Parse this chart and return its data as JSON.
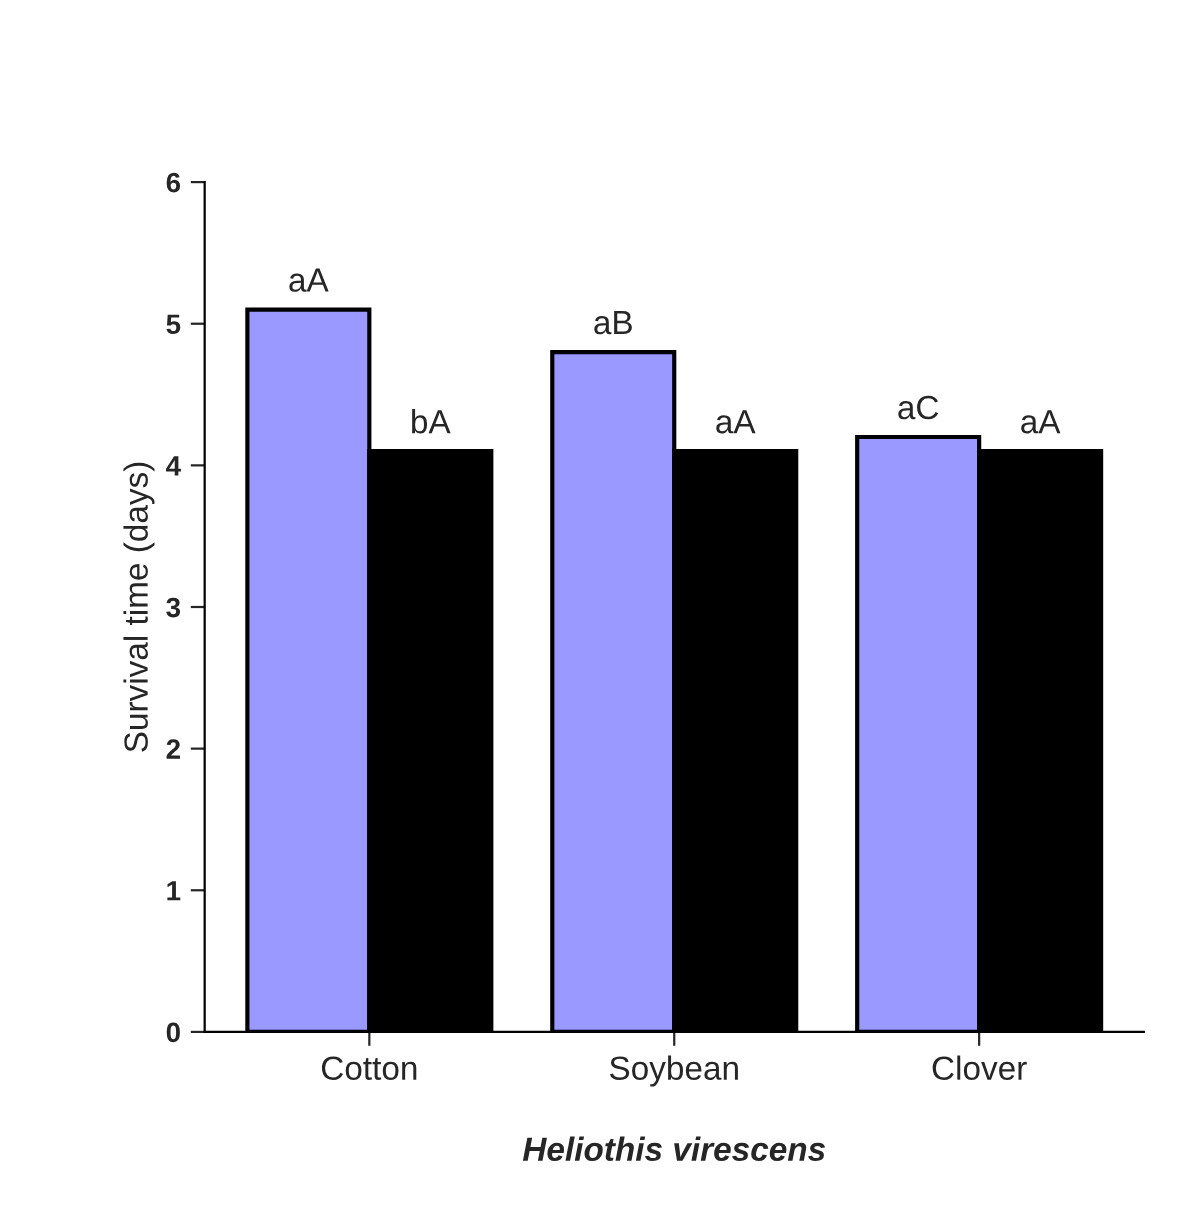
{
  "chart_data": {
    "type": "bar",
    "xlabel": "Heliothis virescens",
    "ylabel": "Survival time (days)",
    "categories": [
      "Cotton",
      "Soybean",
      "Clover"
    ],
    "series": [
      {
        "color": "#9999ff",
        "values": [
          5.1,
          4.8,
          4.2
        ],
        "value_labels": [
          "aA",
          "aB",
          "aC"
        ]
      },
      {
        "color": "#000000",
        "values": [
          4.1,
          4.1,
          4.1
        ],
        "value_labels": [
          "bA",
          "aA",
          "aA"
        ]
      }
    ],
    "ylim": [
      0,
      6
    ],
    "yticks": [
      0,
      1,
      2,
      3,
      4,
      5,
      6
    ],
    "grid": false,
    "legend": false
  }
}
